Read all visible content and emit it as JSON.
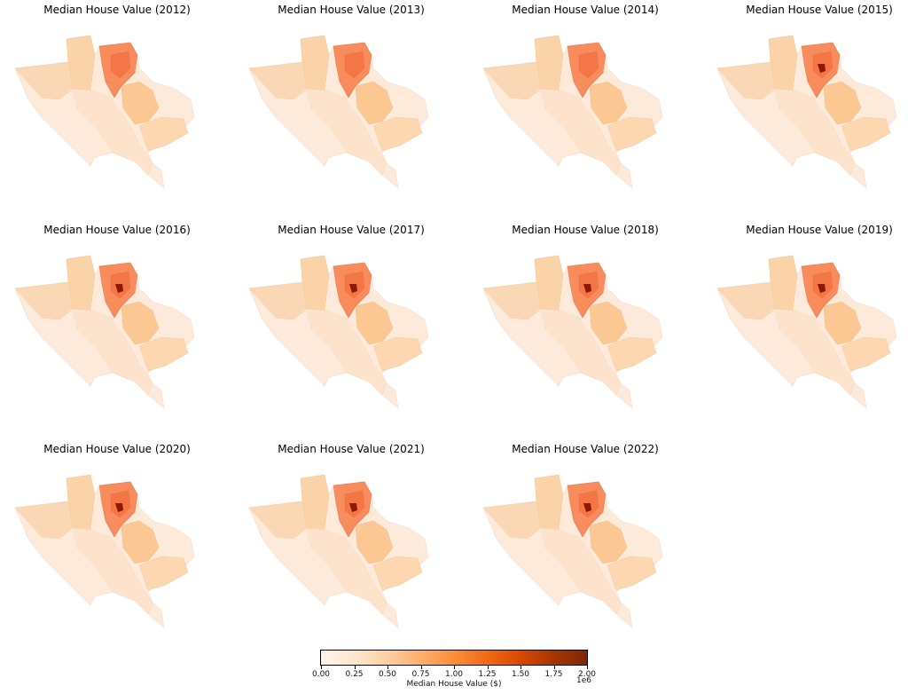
{
  "panels": [
    {
      "title": "Median House Value (2012)",
      "hotspot": 0.0
    },
    {
      "title": "Median House Value (2013)",
      "hotspot": 0.0
    },
    {
      "title": "Median House Value (2014)",
      "hotspot": 0.0
    },
    {
      "title": "Median House Value (2015)",
      "hotspot": 1.0
    },
    {
      "title": "Median House Value (2016)",
      "hotspot": 1.0
    },
    {
      "title": "Median House Value (2017)",
      "hotspot": 1.0
    },
    {
      "title": "Median House Value (2018)",
      "hotspot": 1.0
    },
    {
      "title": "Median House Value (2019)",
      "hotspot": 1.0
    },
    {
      "title": "Median House Value (2020)",
      "hotspot": 1.0
    },
    {
      "title": "Median House Value (2021)",
      "hotspot": 1.0
    },
    {
      "title": "Median House Value (2022)",
      "hotspot": 1.0
    }
  ],
  "colorbar": {
    "label": "Median House Value ($)",
    "exponent": "1e6",
    "ticks": [
      "0.00",
      "0.25",
      "0.50",
      "0.75",
      "1.00",
      "1.25",
      "1.50",
      "1.75",
      "2.00"
    ],
    "colormap": "OrRd-like orange",
    "colors": [
      "#fff5eb",
      "#fdd0a2",
      "#fd8d3c",
      "#d94801",
      "#7f2704"
    ]
  }
}
